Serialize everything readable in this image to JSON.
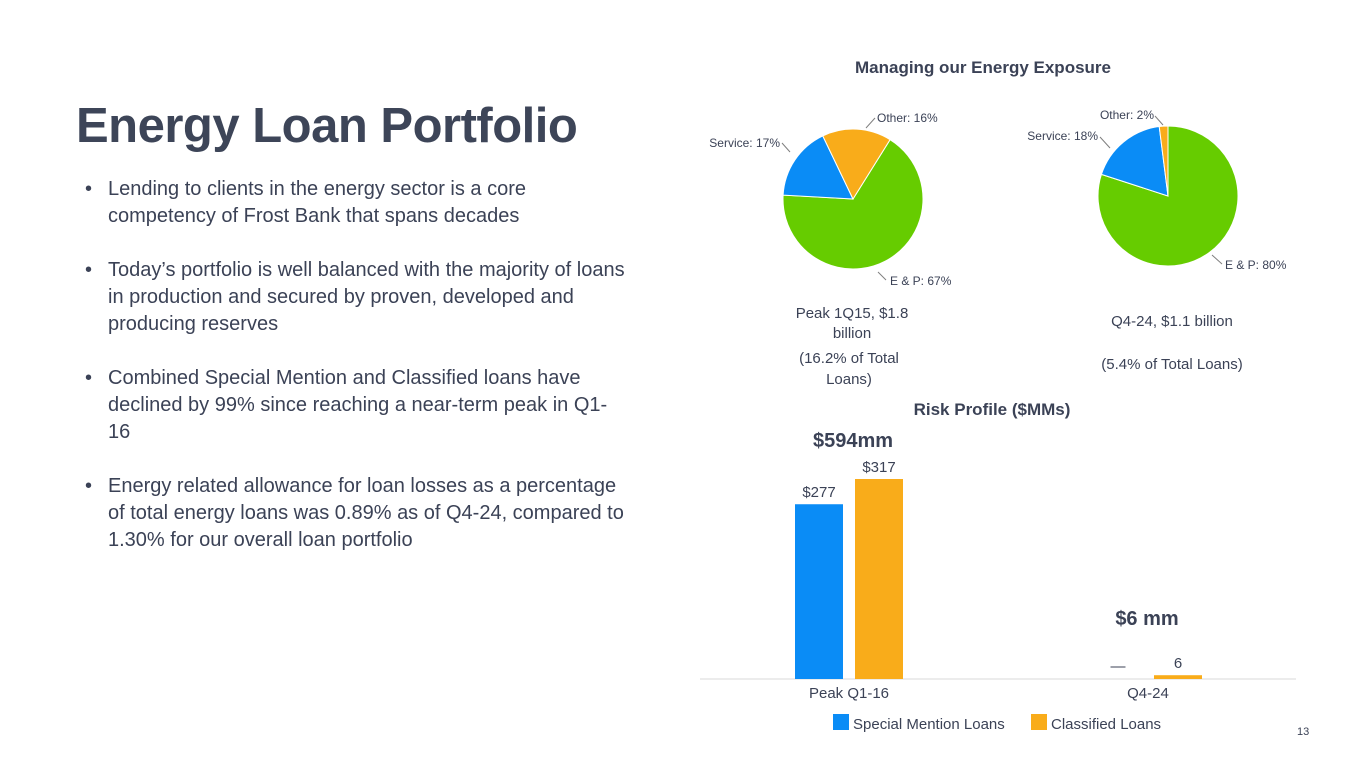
{
  "slide": {
    "title": "Energy Loan Portfolio",
    "page_number": "13",
    "bullets": [
      "Lending to clients in the energy sector is a core competency of Frost Bank that spans decades",
      "Today’s portfolio is well balanced with the majority of loans in production and secured by proven, developed and producing reserves",
      "Combined Special Mention and Classified loans have declined by 99% since reaching a near-term peak in Q1-16",
      "Energy related allowance for loan losses as a percentage of total energy loans was 0.89% as of Q4-24, compared to 1.30% for our overall loan portfolio"
    ]
  },
  "colors": {
    "green": "#66cc00",
    "blue": "#0a8cf6",
    "amber": "#f9ac1a",
    "text": "#3b4256",
    "axis": "#d9d9d9"
  },
  "chart_data": [
    {
      "type": "pie",
      "section_title": "Managing our Energy Exposure",
      "title": "Peak 1Q15, $1.8 billion",
      "subtitle": "(16.2% of Total Loans)",
      "slices": [
        {
          "name": "E & P",
          "value": 67,
          "label": "E & P: 67%",
          "color": "#66cc00"
        },
        {
          "name": "Service",
          "value": 17,
          "label": "Service: 17%",
          "color": "#0a8cf6"
        },
        {
          "name": "Other",
          "value": 16,
          "label": "Other: 16%",
          "color": "#f9ac1a"
        }
      ]
    },
    {
      "type": "pie",
      "title": "Q4-24, $1.1 billion",
      "subtitle": "(5.4% of Total Loans)",
      "slices": [
        {
          "name": "E & P",
          "value": 80,
          "label": "E & P: 80%",
          "color": "#66cc00"
        },
        {
          "name": "Service",
          "value": 18,
          "label": "Service: 18%",
          "color": "#0a8cf6"
        },
        {
          "name": "Other",
          "value": 2,
          "label": "Other: 2%",
          "color": "#f9ac1a"
        }
      ]
    },
    {
      "type": "bar",
      "title": "Risk Profile ($MMs)",
      "categories": [
        "Peak Q1-16",
        "Q4-24"
      ],
      "series": [
        {
          "name": "Special Mention Loans",
          "values": [
            277,
            0
          ],
          "labels": [
            "$277",
            "—"
          ],
          "color": "#0a8cf6"
        },
        {
          "name": "Classified Loans",
          "values": [
            317,
            6
          ],
          "labels": [
            "$317",
            "6"
          ],
          "color": "#f9ac1a"
        }
      ],
      "totals": [
        "$594mm",
        "$6 mm"
      ],
      "legend": "bottom",
      "ylim": [
        0,
        317
      ]
    }
  ]
}
